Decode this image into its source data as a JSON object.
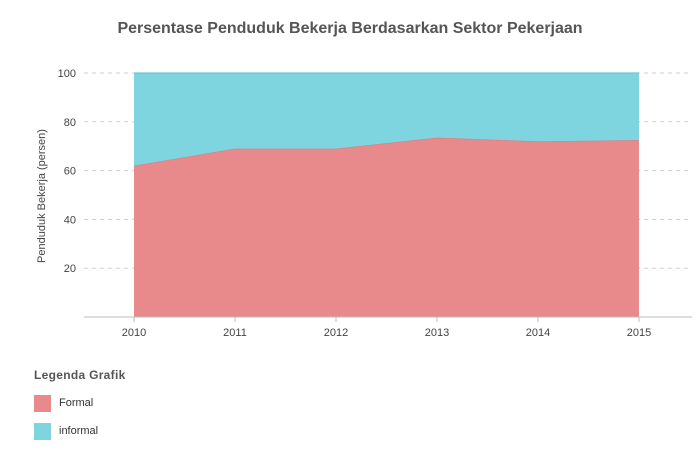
{
  "chart_data": {
    "type": "area",
    "stacked": true,
    "title": "Persentase Penduduk Bekerja Berdasarkan Sektor Pekerjaan",
    "xlabel": "",
    "ylabel": "Penduduk Bekerja (persen)",
    "x": [
      "2010",
      "2011",
      "2012",
      "2013",
      "2014",
      "2015"
    ],
    "ylim": [
      0,
      100
    ],
    "yticks": [
      20,
      40,
      60,
      80,
      100
    ],
    "grid": true,
    "series": [
      {
        "name": "Formal",
        "color": "#e8898b",
        "values": [
          62,
          69,
          69,
          73.5,
          72,
          72.5
        ]
      },
      {
        "name": "informal",
        "color": "#7fd5df",
        "values": [
          38,
          31,
          31,
          26.5,
          28,
          27.5
        ]
      }
    ],
    "legend": {
      "title": "Legenda Grafik",
      "placement": "bottom-left"
    }
  }
}
